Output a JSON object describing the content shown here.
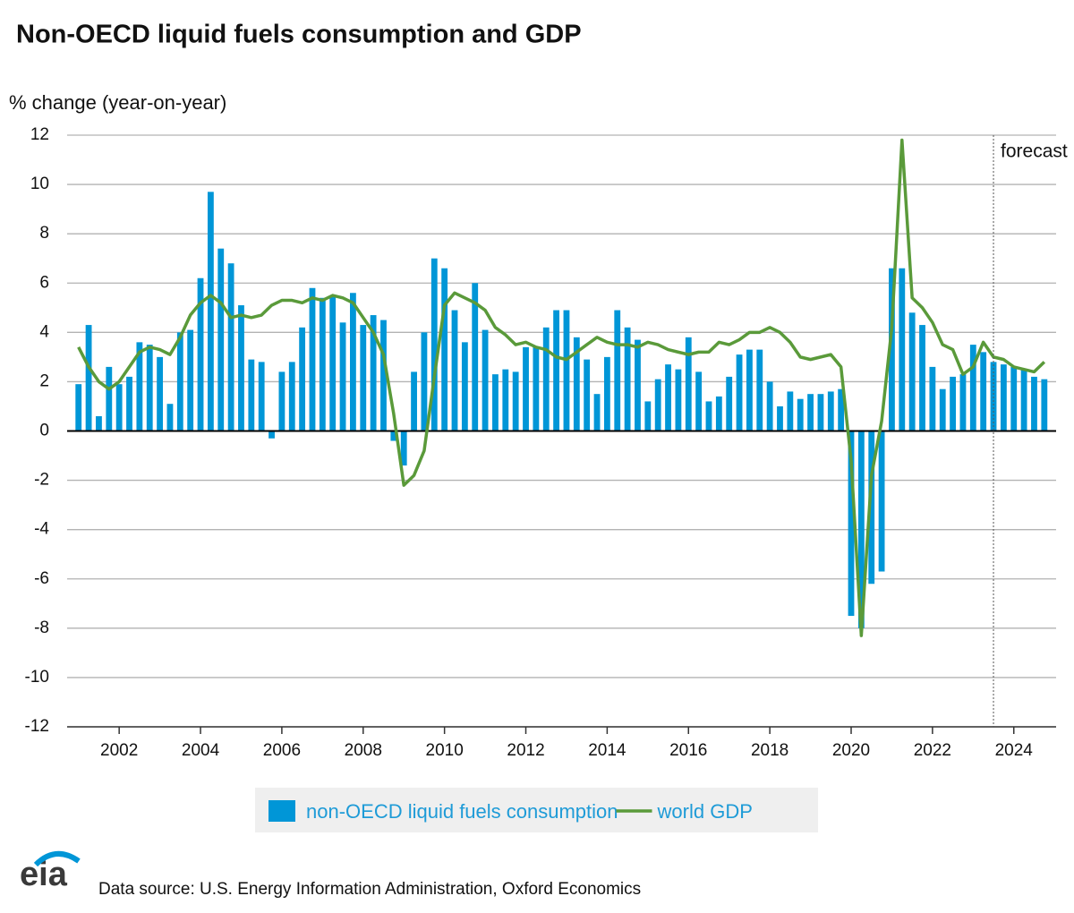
{
  "chart_data": {
    "type": "bar",
    "title": "Non-OECD liquid fuels consumption and GDP",
    "ylabel": "% change (year-on-year)",
    "source": "Data source: U.S. Energy Information Administration, Oxford Economics",
    "logo": "eia",
    "annotation": {
      "text": "forecast",
      "x": 2023.5
    },
    "x": [
      2001,
      2001.25,
      2001.5,
      2001.75,
      2002,
      2002.25,
      2002.5,
      2002.75,
      2003,
      2003.25,
      2003.5,
      2003.75,
      2004,
      2004.25,
      2004.5,
      2004.75,
      2005,
      2005.25,
      2005.5,
      2005.75,
      2006,
      2006.25,
      2006.5,
      2006.75,
      2007,
      2007.25,
      2007.5,
      2007.75,
      2008,
      2008.25,
      2008.5,
      2008.75,
      2009,
      2009.25,
      2009.5,
      2009.75,
      2010,
      2010.25,
      2010.5,
      2010.75,
      2011,
      2011.25,
      2011.5,
      2011.75,
      2012,
      2012.25,
      2012.5,
      2012.75,
      2013,
      2013.25,
      2013.5,
      2013.75,
      2014,
      2014.25,
      2014.5,
      2014.75,
      2015,
      2015.25,
      2015.5,
      2015.75,
      2016,
      2016.25,
      2016.5,
      2016.75,
      2017,
      2017.25,
      2017.5,
      2017.75,
      2018,
      2018.25,
      2018.5,
      2018.75,
      2019,
      2019.25,
      2019.5,
      2019.75,
      2020,
      2020.25,
      2020.5,
      2020.75,
      2021,
      2021.25,
      2021.5,
      2021.75,
      2022,
      2022.25,
      2022.5,
      2022.75,
      2023,
      2023.25,
      2023.5,
      2023.75,
      2024,
      2024.25,
      2024.5,
      2024.75
    ],
    "series": [
      {
        "name": "non-OECD liquid fuels consumption",
        "type": "bar",
        "color": "#0096d7",
        "values": [
          1.9,
          4.3,
          0.6,
          2.6,
          1.9,
          2.2,
          3.6,
          3.5,
          3.0,
          1.1,
          4.0,
          4.1,
          6.2,
          9.7,
          7.4,
          6.8,
          5.1,
          2.9,
          2.8,
          -0.3,
          2.4,
          2.8,
          4.2,
          5.8,
          5.4,
          5.5,
          4.4,
          5.6,
          4.3,
          4.7,
          4.5,
          -0.4,
          -1.4,
          2.4,
          4.0,
          7.0,
          6.6,
          4.9,
          3.6,
          6.0,
          4.1,
          2.3,
          2.5,
          2.4,
          3.4,
          3.4,
          4.2,
          4.9,
          4.9,
          3.8,
          2.9,
          1.5,
          3.0,
          4.9,
          4.2,
          3.7,
          1.2,
          2.1,
          2.7,
          2.5,
          3.8,
          2.4,
          1.2,
          1.4,
          2.2,
          3.1,
          3.3,
          3.3,
          2.0,
          1.0,
          1.6,
          1.3,
          1.5,
          1.5,
          1.6,
          1.7,
          -7.5,
          -8.0,
          -6.2,
          -5.7,
          6.6,
          6.6,
          4.8,
          4.3,
          2.6,
          1.7,
          2.2,
          2.3,
          3.5,
          3.2,
          2.8,
          2.7,
          2.6,
          2.5,
          2.2,
          2.1
        ]
      },
      {
        "name": "world GDP",
        "type": "line",
        "color": "#5a9a3a",
        "values": [
          3.4,
          2.6,
          2.0,
          1.7,
          2.0,
          2.6,
          3.2,
          3.4,
          3.3,
          3.1,
          3.8,
          4.7,
          5.2,
          5.5,
          5.2,
          4.6,
          4.7,
          4.6,
          4.7,
          5.1,
          5.3,
          5.3,
          5.2,
          5.4,
          5.3,
          5.5,
          5.4,
          5.2,
          4.6,
          4.0,
          3.1,
          0.7,
          -2.2,
          -1.8,
          -0.8,
          2.2,
          5.1,
          5.6,
          5.4,
          5.2,
          4.9,
          4.2,
          3.9,
          3.5,
          3.6,
          3.4,
          3.3,
          3.0,
          2.9,
          3.2,
          3.5,
          3.8,
          3.6,
          3.5,
          3.5,
          3.4,
          3.6,
          3.5,
          3.3,
          3.2,
          3.1,
          3.2,
          3.2,
          3.6,
          3.5,
          3.7,
          4.0,
          4.0,
          4.2,
          4.0,
          3.6,
          3.0,
          2.9,
          3.0,
          3.1,
          2.6,
          -1.2,
          -8.3,
          -1.8,
          0.4,
          4.2,
          11.8,
          5.4,
          5.0,
          4.4,
          3.5,
          3.3,
          2.3,
          2.6,
          3.6,
          3.0,
          2.9,
          2.6,
          2.5,
          2.4,
          2.8
        ]
      }
    ],
    "xlim": [
      2000.72,
      2025.04
    ],
    "xticks": [
      2002,
      2004,
      2006,
      2008,
      2010,
      2012,
      2014,
      2016,
      2018,
      2020,
      2022,
      2024
    ],
    "ylim": [
      -12,
      12
    ],
    "yticks": [
      -12,
      -10,
      -8,
      -6,
      -4,
      -2,
      0,
      2,
      4,
      6,
      8,
      10,
      12
    ],
    "grid": true
  }
}
